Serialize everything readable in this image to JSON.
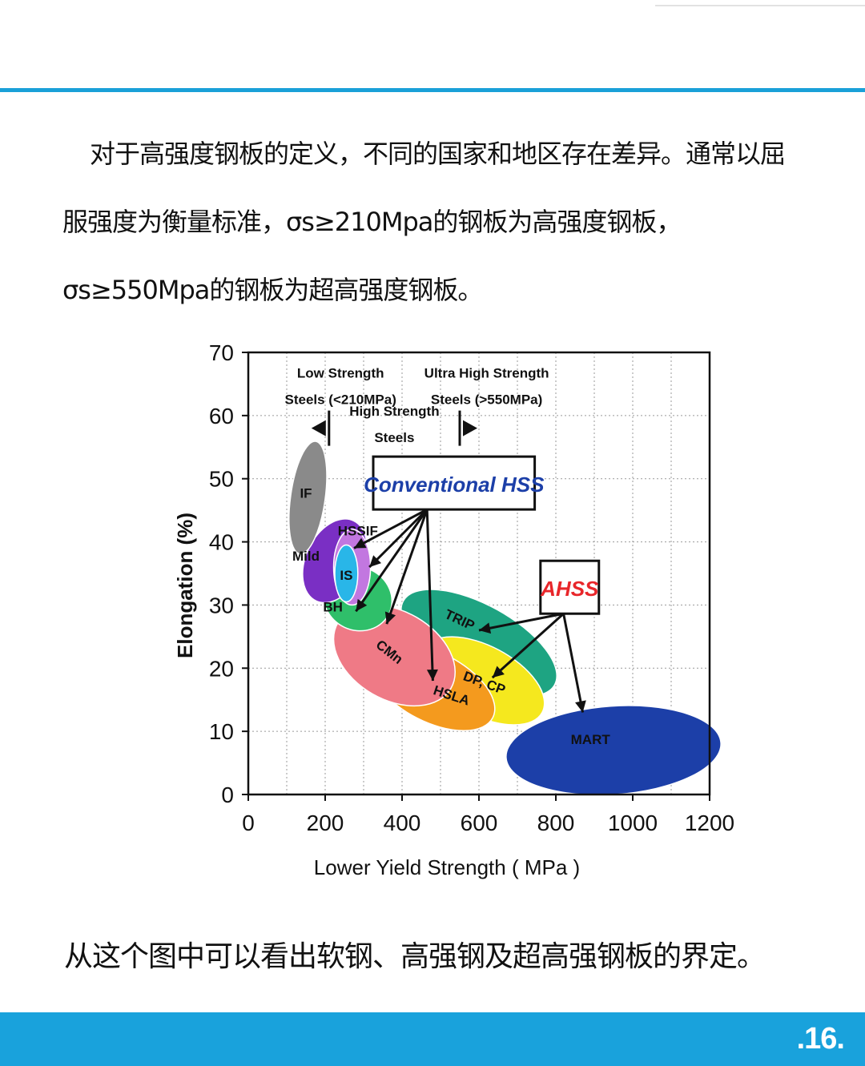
{
  "intro_text": "对于高强度钢板的定义，不同的国家和地区存在差异。通常以屈服强度为衡量标准，σs≥210Mpa的钢板为高强度钢板，σs≥550Mpa的钢板为超高强度钢板。",
  "caption": "从这个图中可以看出软钢、高强钢及超高强钢板的界定。",
  "page_number": ".16.",
  "colors": {
    "accent": "#1aa0d8",
    "footer": "#19a2dc"
  },
  "chart_data": {
    "type": "scatter",
    "xlabel": "Lower Yield Strength ( MPa )",
    "ylabel": "Elongation (%)",
    "xlim": [
      0,
      1200
    ],
    "ylim": [
      0,
      70
    ],
    "xticks": [
      0,
      200,
      400,
      600,
      800,
      1000,
      1200
    ],
    "yticks": [
      0,
      10,
      20,
      30,
      40,
      50,
      60,
      70
    ],
    "grid": true,
    "regions": [
      {
        "name": "MART",
        "cx": 950,
        "cy": 7,
        "rx": 280,
        "ry": 7,
        "angle": -4,
        "color": "#1c3fa8",
        "label_color": "#111"
      },
      {
        "name": "TRIP",
        "cx": 600,
        "cy": 24,
        "rx": 225,
        "ry": 6,
        "angle": 29,
        "color": "#1ea482",
        "label_color": "#e8262a"
      },
      {
        "name": "DP, CP",
        "cx": 610,
        "cy": 18,
        "rx": 175,
        "ry": 5.5,
        "angle": 28,
        "color": "#f5e81e",
        "label_color": "#e8262a"
      },
      {
        "name": "HSLA",
        "cx": 480,
        "cy": 17,
        "rx": 175,
        "ry": 5.5,
        "angle": 27,
        "color": "#f49a1e",
        "label_color": "#e8262a"
      },
      {
        "name": "CMn",
        "cx": 380,
        "cy": 22,
        "rx": 170,
        "ry": 7,
        "angle": 30,
        "color": "#ef7a86",
        "label_color": "#111"
      },
      {
        "name": "BH",
        "cx": 285,
        "cy": 31,
        "rx": 90,
        "ry": 5,
        "angle": 25,
        "color": "#2fbf6a",
        "label_color": "#e8262a"
      },
      {
        "name": "Mild",
        "cx": 225,
        "cy": 37,
        "rx": 75,
        "ry": 7,
        "angle": 25,
        "color": "#7a2fc4",
        "label_color": "#111"
      },
      {
        "name": "HSSIF",
        "cx": 270,
        "cy": 36,
        "rx": 48,
        "ry": 6,
        "angle": 0,
        "color": "#c277e0",
        "label_color": "#111"
      },
      {
        "name": "IS",
        "cx": 255,
        "cy": 35,
        "rx": 30,
        "ry": 4.5,
        "angle": 0,
        "color": "#29b6e8",
        "label_color": "#e8262a"
      },
      {
        "name": "IF",
        "cx": 155,
        "cy": 47,
        "rx": 45,
        "ry": 9,
        "angle": 8,
        "color": "#8a8a8a",
        "label_color": "#111"
      }
    ],
    "annotations": [
      {
        "text_lines": [
          "Low Strength",
          "Steels (<210MPa)"
        ],
        "x": 240,
        "y": 66
      },
      {
        "text_lines": [
          "High Strength",
          "Steels"
        ],
        "x": 380,
        "y": 60
      },
      {
        "text_lines": [
          "Ultra High Strength",
          "Steels (>550MPa)"
        ],
        "x": 620,
        "y": 66
      }
    ],
    "boxes": [
      {
        "text": "Conventional HSS",
        "color": "#1c3fa8"
      },
      {
        "text": "AHSS",
        "color": "#e8262a"
      }
    ]
  }
}
